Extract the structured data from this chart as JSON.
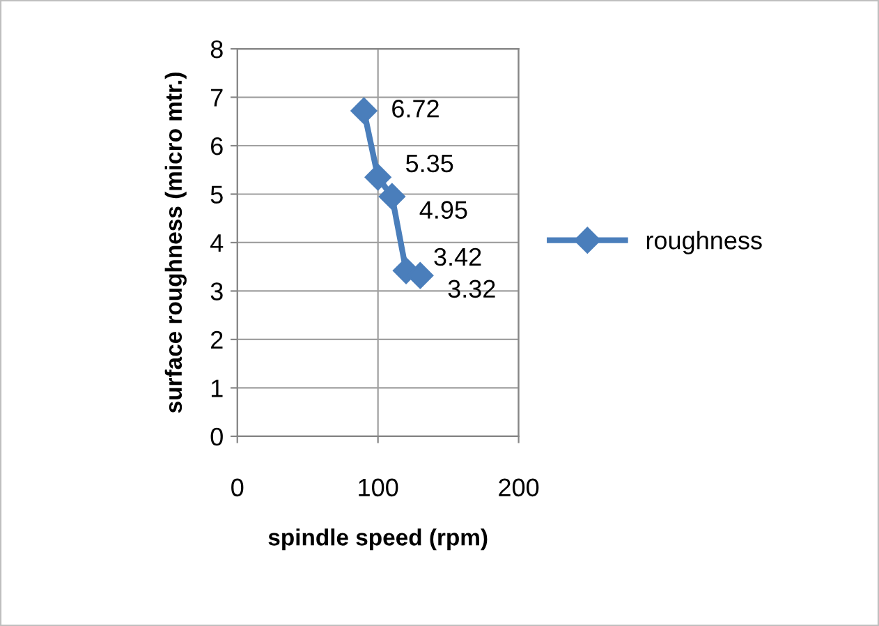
{
  "chart_data": {
    "type": "line",
    "xlabel": "spindle speed (rpm)",
    "ylabel": "surface roughness (micro mtr.)",
    "x": [
      90,
      100,
      110,
      120,
      130
    ],
    "series": [
      {
        "name": "roughness",
        "color": "#4a7ebb",
        "values": [
          6.72,
          5.35,
          4.95,
          3.42,
          3.32
        ]
      }
    ],
    "xlim": [
      0,
      200
    ],
    "xticks": [
      0,
      100,
      200
    ],
    "ylim": [
      0,
      8
    ],
    "yticks": [
      0,
      1,
      2,
      3,
      4,
      5,
      6,
      7,
      8
    ],
    "grid": true,
    "legend": "right",
    "marker": "diamond",
    "line_style": "solid",
    "data_labels": true
  }
}
